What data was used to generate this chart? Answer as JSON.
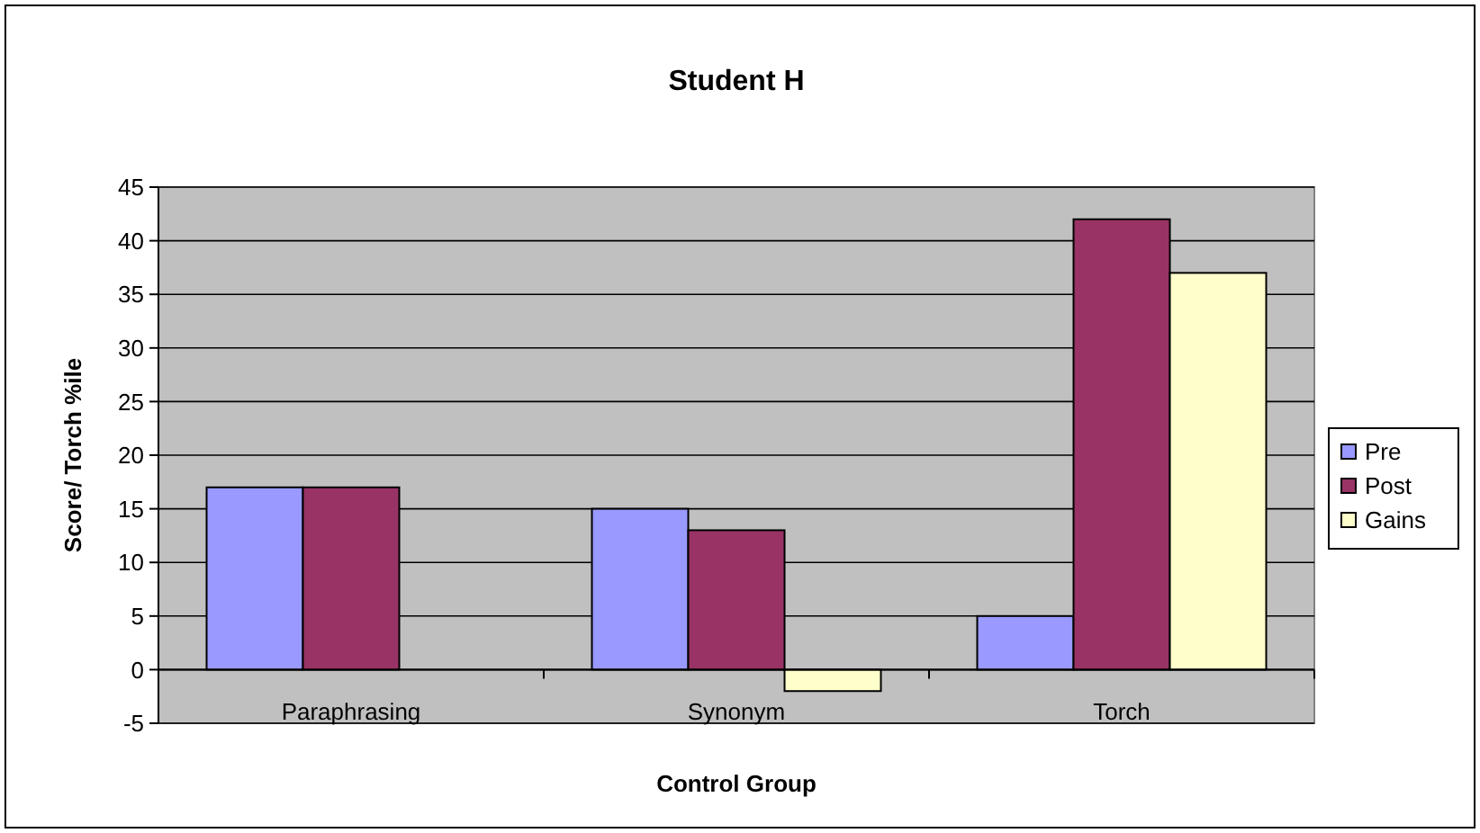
{
  "chart_data": {
    "type": "bar",
    "title": "Student H",
    "xlabel": "Control Group",
    "ylabel": "Score/ Torch %ile",
    "categories": [
      "Paraphrasing",
      "Synonym",
      "Torch"
    ],
    "series": [
      {
        "name": "Pre",
        "color": "#9999ff",
        "values": [
          17,
          15,
          5
        ]
      },
      {
        "name": "Post",
        "color": "#993366",
        "values": [
          17,
          13,
          42
        ]
      },
      {
        "name": "Gains",
        "color": "#ffffcc",
        "values": [
          0,
          -2,
          37
        ]
      }
    ],
    "ylim": [
      -5,
      45
    ],
    "yticks": [
      -5,
      0,
      5,
      10,
      15,
      20,
      25,
      30,
      35,
      40,
      45
    ],
    "grid": "y",
    "legend": "right"
  }
}
